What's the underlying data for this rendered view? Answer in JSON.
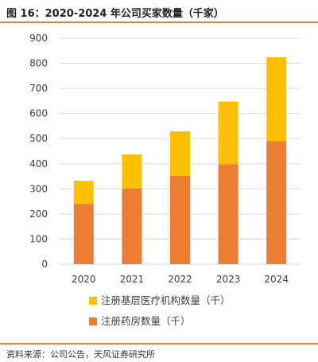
{
  "figure": {
    "title": "图 16：2020-2024 年公司买家数量（千家）",
    "source": "资料来源：公司公告，天风证券研究所"
  },
  "colors": {
    "accent_rule": "#e8832f",
    "grid": "#d9d9d9",
    "axis_text": "#404040"
  },
  "chart_data": {
    "type": "bar",
    "stacked": true,
    "categories": [
      "2020",
      "2021",
      "2022",
      "2023",
      "2024"
    ],
    "series": [
      {
        "name": "注册药房数量（千）",
        "values": [
          240,
          302,
          352,
          398,
          490
        ],
        "color": "#ed7d31"
      },
      {
        "name": "注册基层医疗机构数量（千）",
        "values": [
          92,
          135,
          177,
          250,
          334
        ],
        "color": "#ffc000"
      }
    ],
    "y_ticks": [
      "0",
      "100",
      "200",
      "300",
      "400",
      "500",
      "600",
      "700",
      "800",
      "900"
    ],
    "ylim": [
      0,
      900
    ],
    "grid": true,
    "legend_position": "bottom"
  }
}
